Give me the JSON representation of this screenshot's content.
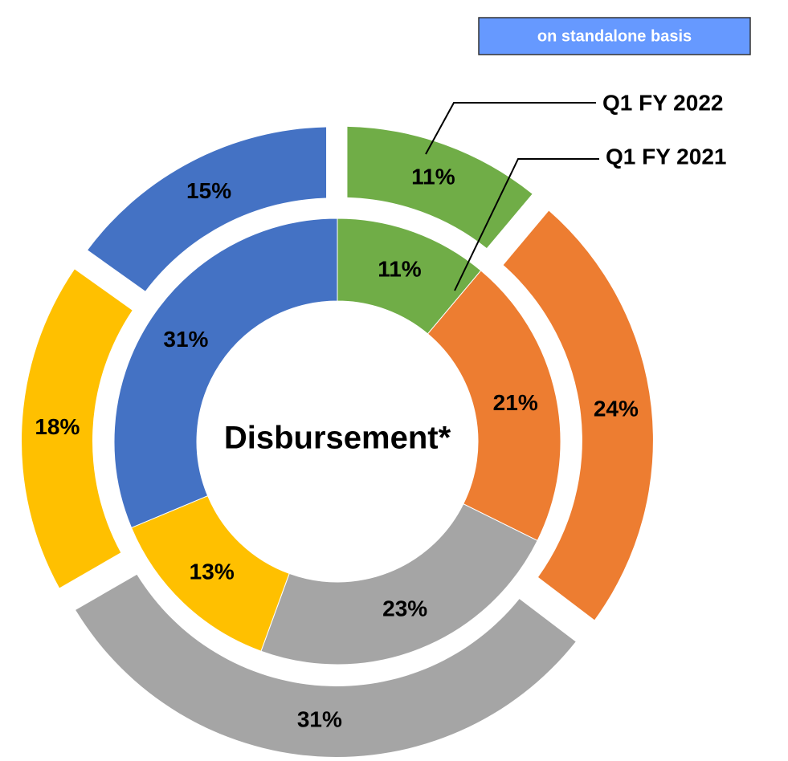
{
  "chart_data": {
    "type": "donut",
    "annotation": "on standalone basis",
    "center_text": "Disbursement*",
    "colors": [
      "#70ad47",
      "#ed7d31",
      "#a5a5a5",
      "#ffc000",
      "#4472c4"
    ],
    "series": [
      {
        "name": "Q1 FY 2022",
        "ring": "outer",
        "values": [
          11,
          24,
          31,
          18,
          15
        ],
        "value_labels": [
          "11%",
          "24%",
          "31%",
          "18%",
          "15%"
        ]
      },
      {
        "name": "Q1 FY 2021",
        "ring": "inner",
        "values": [
          11,
          21,
          23,
          13,
          31
        ],
        "value_labels": [
          "11%",
          "21%",
          "23%",
          "13%",
          "31%"
        ]
      }
    ]
  }
}
